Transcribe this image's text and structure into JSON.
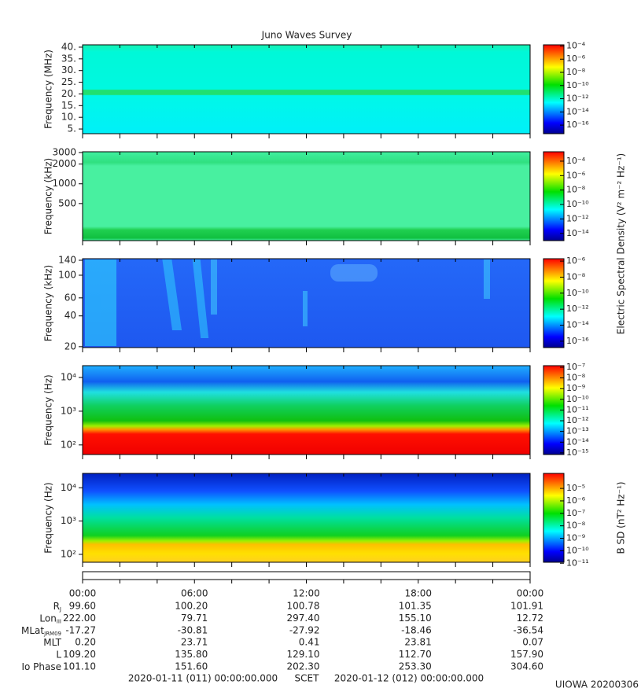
{
  "title": "Juno Waves Survey",
  "chart_data": [
    {
      "type": "spectrogram",
      "ylabel": "Frequency (MHz)",
      "log_y": false,
      "ylim": [
        3,
        41
      ],
      "yticks": [
        {
          "value": 5,
          "label": "5."
        },
        {
          "value": 10,
          "label": "10."
        },
        {
          "value": 15,
          "label": "15."
        },
        {
          "value": 20,
          "label": "20."
        },
        {
          "value": 25,
          "label": "25."
        },
        {
          "value": 30,
          "label": "30."
        },
        {
          "value": 35,
          "label": "35."
        },
        {
          "value": 40,
          "label": "40."
        }
      ],
      "clim": [
        5e-18,
        0.00015
      ],
      "cticks": [
        {
          "value": 0.0001,
          "label": "10⁻⁴"
        },
        {
          "value": 1e-06,
          "label": "10⁻⁶"
        },
        {
          "value": 1e-08,
          "label": "10⁻⁸"
        },
        {
          "value": 1e-10,
          "label": "10⁻¹⁰"
        },
        {
          "value": 1e-12,
          "label": "10⁻¹²"
        },
        {
          "value": 1e-14,
          "label": "10⁻¹⁴"
        },
        {
          "value": 1e-16,
          "label": "10⁻¹⁶"
        }
      ]
    },
    {
      "type": "spectrogram",
      "ylabel": "Frequency (kHz)",
      "log_y": true,
      "ylim": [
        136,
        3080
      ],
      "yticks": [
        500,
        1000,
        2000,
        3000
      ],
      "clim": [
        1e-15,
        0.002
      ],
      "cticks": [
        {
          "value": 0.0001,
          "label": "10⁻⁴"
        },
        {
          "value": 1e-06,
          "label": "10⁻⁶"
        },
        {
          "value": 1e-08,
          "label": "10⁻⁸"
        },
        {
          "value": 1e-10,
          "label": "10⁻¹⁰"
        },
        {
          "value": 1e-12,
          "label": "10⁻¹²"
        },
        {
          "value": 1e-14,
          "label": "10⁻¹⁴"
        }
      ],
      "colorbar_label": "Electric Spectral Density (V² m⁻² Hz⁻¹)"
    },
    {
      "type": "spectrogram",
      "ylabel": "Frequency (kHz)",
      "log_y": true,
      "ylim": [
        19.6,
        145
      ],
      "yticks": [
        20,
        40,
        60,
        100,
        140
      ],
      "clim": [
        1.6e-17,
        2e-06
      ],
      "cticks": [
        {
          "value": 1e-06,
          "label": "10⁻⁶"
        },
        {
          "value": 1e-08,
          "label": "10⁻⁸"
        },
        {
          "value": 1e-10,
          "label": "10⁻¹⁰"
        },
        {
          "value": 1e-12,
          "label": "10⁻¹²"
        },
        {
          "value": 1e-14,
          "label": "10⁻¹⁴"
        },
        {
          "value": 1e-16,
          "label": "10⁻¹⁶"
        }
      ]
    },
    {
      "type": "spectrogram",
      "ylabel": "Frequency (Hz)",
      "log_y": true,
      "ylim": [
        52,
        22400
      ],
      "yticks": [
        {
          "value": 100,
          "label": "10²"
        },
        {
          "value": 1000,
          "label": "10³"
        },
        {
          "value": 10000,
          "label": "10⁴"
        }
      ],
      "clim": [
        7e-16,
        1.4e-07
      ],
      "cticks": [
        {
          "value": 1e-07,
          "label": "10⁻⁷"
        },
        {
          "value": 1e-08,
          "label": "10⁻⁸"
        },
        {
          "value": 1e-09,
          "label": "10⁻⁹"
        },
        {
          "value": 1e-10,
          "label": "10⁻¹⁰"
        },
        {
          "value": 1e-11,
          "label": "10⁻¹¹"
        },
        {
          "value": 1e-12,
          "label": "10⁻¹²"
        },
        {
          "value": 1e-13,
          "label": "10⁻¹³"
        },
        {
          "value": 1e-14,
          "label": "10⁻¹⁴"
        },
        {
          "value": 1e-15,
          "label": "10⁻¹⁵"
        }
      ]
    },
    {
      "type": "spectrogram",
      "ylabel": "Frequency (Hz)",
      "log_y": true,
      "ylim": [
        58,
        27000
      ],
      "yticks": [
        {
          "value": 100,
          "label": "10²"
        },
        {
          "value": 1000,
          "label": "10³"
        },
        {
          "value": 10000,
          "label": "10⁴"
        }
      ],
      "clim": [
        1.2e-11,
        0.00016
      ],
      "cticks": [
        {
          "value": 1e-05,
          "label": "10⁻⁵"
        },
        {
          "value": 1e-06,
          "label": "10⁻⁶"
        },
        {
          "value": 1e-07,
          "label": "10⁻⁷"
        },
        {
          "value": 1e-08,
          "label": "10⁻⁸"
        },
        {
          "value": 1e-09,
          "label": "10⁻⁹"
        },
        {
          "value": 1e-10,
          "label": "10⁻¹⁰"
        },
        {
          "value": 1e-11,
          "label": "10⁻¹¹"
        }
      ],
      "colorbar_label": "B SD (nT² Hz⁻¹)"
    }
  ],
  "time_axis": {
    "xlim": [
      0,
      24
    ],
    "xticks": [
      0,
      2,
      4,
      6,
      8,
      10,
      12,
      14,
      16,
      18,
      20,
      22,
      24
    ],
    "tick_labels": [
      {
        "value": 0,
        "label": "00:00"
      },
      {
        "value": 6,
        "label": "06:00"
      },
      {
        "value": 12,
        "label": "12:00"
      },
      {
        "value": 18,
        "label": "18:00"
      },
      {
        "value": 24,
        "label": "00:00"
      }
    ]
  },
  "ephemeris": [
    {
      "label": "R",
      "subscript": "J",
      "values": [
        "99.60",
        "100.20",
        "100.78",
        "101.35",
        "101.91"
      ]
    },
    {
      "label": "Lon",
      "subscript": "III",
      "values": [
        "222.00",
        "79.71",
        "297.40",
        "155.10",
        "12.72"
      ]
    },
    {
      "label": "MLat",
      "subscript": "JRM09",
      "values": [
        "-17.27",
        "-30.81",
        "-27.92",
        "-18.46",
        "-36.54"
      ]
    },
    {
      "label": "MLT",
      "values": [
        "0.20",
        "23.71",
        "0.41",
        "23.81",
        "0.07"
      ]
    },
    {
      "label": "L",
      "values": [
        "109.20",
        "135.80",
        "129.10",
        "112.70",
        "157.90"
      ]
    },
    {
      "label": "Io Phase",
      "values": [
        "101.10",
        "151.60",
        "202.30",
        "253.30",
        "304.60"
      ]
    }
  ],
  "footer": {
    "start": "2020-01-11 (011) 00:00:00.000",
    "scet": "SCET",
    "end": "2020-01-12 (012) 00:00:00.000",
    "credit": "UIOWA 20200306"
  }
}
